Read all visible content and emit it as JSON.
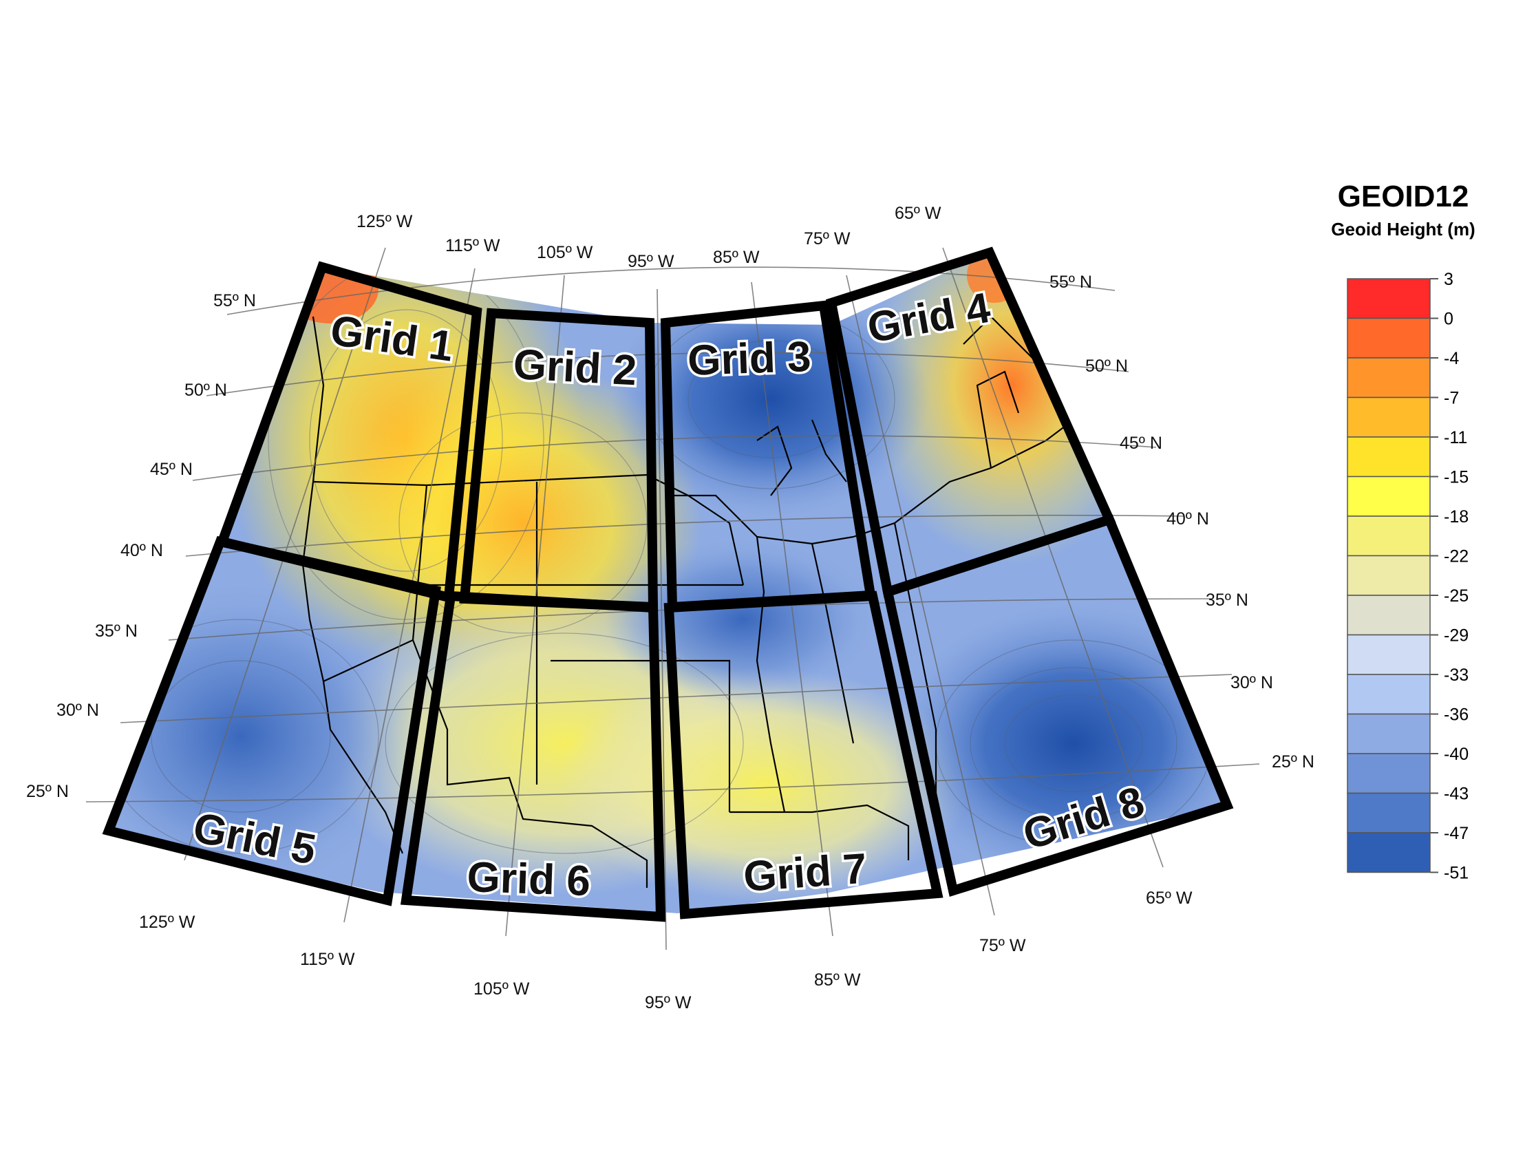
{
  "legend": {
    "title": "GEOID12",
    "subtitle": "Geoid Height (m)",
    "ticks": [
      "3",
      "0",
      "-4",
      "-7",
      "-11",
      "-15",
      "-18",
      "-22",
      "-25",
      "-29",
      "-33",
      "-36",
      "-40",
      "-43",
      "-47",
      "-51"
    ],
    "colors": [
      "#ff2a2a",
      "#ff6a2a",
      "#ff952a",
      "#ffbb2a",
      "#ffe22a",
      "#ffff4a",
      "#f4f07a",
      "#eeeaa8",
      "#e0e0cf",
      "#cfdcf4",
      "#b0c8f2",
      "#8eabe3",
      "#6f93d6",
      "#4f7ac7",
      "#2f5fb5"
    ]
  },
  "grid_labels": [
    "Grid 1",
    "Grid 2",
    "Grid 3",
    "Grid 4",
    "Grid 5",
    "Grid 6",
    "Grid 7",
    "Grid 8"
  ],
  "longitude_labels_top": [
    "125º W",
    "115º W",
    "105º W",
    "95º W",
    "85º W",
    "75º W",
    "65º W"
  ],
  "longitude_labels_bottom": [
    "125º W",
    "115º W",
    "105º W",
    "95º W",
    "85º W",
    "75º W",
    "65º W"
  ],
  "latitude_labels_left": [
    "55º N",
    "50º N",
    "45º N",
    "40º N",
    "35º N",
    "30º N",
    "25º N"
  ],
  "latitude_labels_right": [
    "55º N",
    "50º N",
    "45º N",
    "40º N",
    "35º N",
    "30º N",
    "25º N"
  ]
}
